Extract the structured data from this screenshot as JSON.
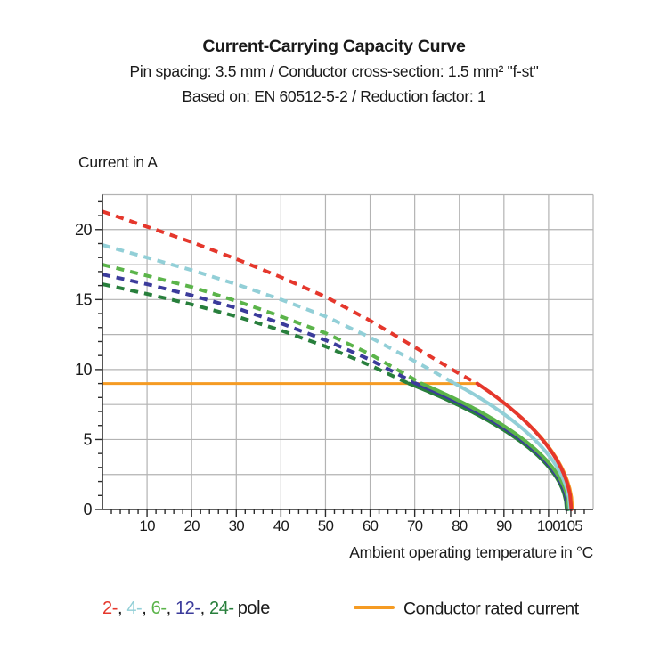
{
  "header": {
    "title": "Current-Carrying Capacity Curve",
    "subtitle1": "Pin spacing: 3.5 mm / Conductor cross-section: 1.5 mm² \"f-st\"",
    "subtitle2": "Based on: EN 60512-5-2 / Reduction factor: 1"
  },
  "legend": {
    "poles": [
      {
        "label": "2-",
        "color": "#E5372C"
      },
      {
        "label": "4-",
        "color": "#92CFD7"
      },
      {
        "label": "6-",
        "color": "#5BB44A"
      },
      {
        "label": "12-",
        "color": "#3B3B9B"
      },
      {
        "label": "24-",
        "color": "#287F3C"
      }
    ],
    "separator": ",",
    "poles_suffix": "pole",
    "rated": {
      "label": "Conductor rated current",
      "color": "#F59B23"
    }
  },
  "chart_data": {
    "type": "line",
    "title": "Current-Carrying Capacity Curve",
    "x_axis": {
      "label": "Ambient operating temperature in °C",
      "min": 0,
      "max": 110,
      "grid_step": 10,
      "major_ticks": [
        10,
        20,
        30,
        40,
        50,
        60,
        70,
        80,
        90,
        100,
        105
      ],
      "minor_step": 2
    },
    "y_axis": {
      "label": "Current in A",
      "min": 0,
      "max": 22.5,
      "grid_step": 2.5,
      "major_ticks": [
        0,
        5,
        10,
        15,
        20
      ],
      "minor_step": 1
    },
    "rated_current": {
      "label": "Conductor rated current",
      "color": "#F59B23",
      "value": 9,
      "drop_start": 84,
      "end_temp": 105.4
    },
    "series": [
      {
        "name": "2-pole",
        "poles": 2,
        "color": "#E5372C",
        "dashed_points": [
          [
            0,
            21.3
          ],
          [
            10,
            20.2
          ],
          [
            20,
            19.1
          ],
          [
            30,
            17.9
          ],
          [
            40,
            16.6
          ],
          [
            50,
            15.2
          ],
          [
            60,
            13.5
          ],
          [
            70,
            11.6
          ],
          [
            80,
            9.7
          ],
          [
            84,
            9.0
          ]
        ],
        "solid_from": 84,
        "end_temp": 105.1
      },
      {
        "name": "4-pole",
        "poles": 4,
        "color": "#92CFD7",
        "dashed_points": [
          [
            0,
            18.9
          ],
          [
            10,
            18.0
          ],
          [
            20,
            17.1
          ],
          [
            30,
            16.1
          ],
          [
            40,
            15.0
          ],
          [
            50,
            13.8
          ],
          [
            60,
            12.3
          ],
          [
            70,
            10.6
          ],
          [
            79,
            9.0
          ]
        ],
        "solid_from": 79,
        "end_temp": 104.8
      },
      {
        "name": "6-pole",
        "poles": 6,
        "color": "#5BB44A",
        "dashed_points": [
          [
            0,
            17.5
          ],
          [
            10,
            16.7
          ],
          [
            20,
            15.9
          ],
          [
            30,
            14.9
          ],
          [
            40,
            13.8
          ],
          [
            50,
            12.6
          ],
          [
            60,
            11.1
          ],
          [
            71.5,
            9.0
          ]
        ],
        "solid_from": 71.5,
        "end_temp": 104.55
      },
      {
        "name": "12-pole",
        "poles": 12,
        "color": "#3B3B9B",
        "dashed_points": [
          [
            0,
            16.8
          ],
          [
            10,
            16.1
          ],
          [
            20,
            15.3
          ],
          [
            30,
            14.4
          ],
          [
            40,
            13.3
          ],
          [
            50,
            12.1
          ],
          [
            60,
            10.7
          ],
          [
            70.3,
            9.0
          ]
        ],
        "solid_from": 70.3,
        "end_temp": 104.3
      },
      {
        "name": "24-pole",
        "poles": 24,
        "color": "#287F3C",
        "dashed_points": [
          [
            0,
            16.1
          ],
          [
            10,
            15.4
          ],
          [
            20,
            14.65
          ],
          [
            30,
            13.8
          ],
          [
            40,
            12.8
          ],
          [
            50,
            11.65
          ],
          [
            60,
            10.3
          ],
          [
            68.7,
            9.0
          ]
        ],
        "solid_from": 68.7,
        "end_temp": 104.05
      }
    ]
  }
}
